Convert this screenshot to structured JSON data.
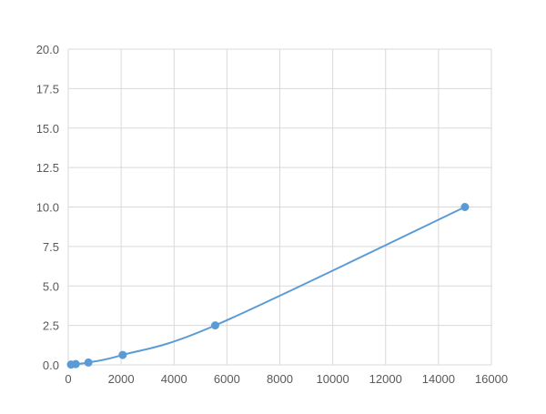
{
  "chart_data": {
    "type": "line",
    "title": "",
    "xlabel": "",
    "ylabel": "",
    "xlim": [
      0,
      16000
    ],
    "ylim": [
      0,
      20
    ],
    "xticks": [
      "0",
      "2000",
      "4000",
      "6000",
      "8000",
      "10000",
      "12000",
      "14000",
      "16000"
    ],
    "yticks": [
      "0.0",
      "2.5",
      "5.0",
      "7.5",
      "10.0",
      "12.5",
      "15.0",
      "17.5",
      "20.0"
    ],
    "grid": true,
    "legend": "none",
    "series": [
      {
        "x": [
          104,
          282,
          762,
          2058,
          5556,
          15000
        ],
        "y": [
          0.02,
          0.05,
          0.15,
          0.63,
          2.5,
          10.0
        ],
        "color": "#5b9bd5",
        "markers": true,
        "smooth": true
      }
    ]
  }
}
